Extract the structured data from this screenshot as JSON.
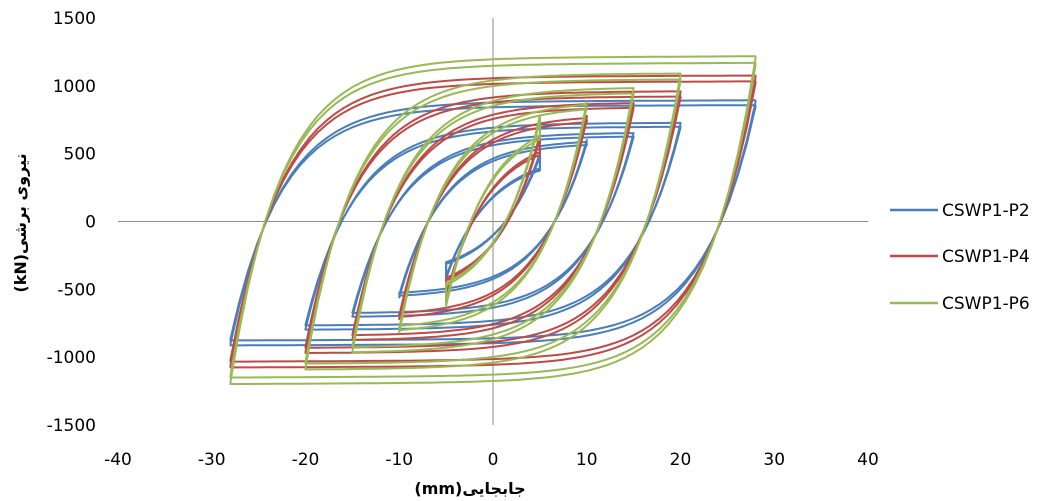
{
  "chart_data": {
    "type": "line",
    "xlabel": "جابجایی(mm)",
    "ylabel": "نیروی برشی(kN)",
    "xlim": [
      -40,
      40
    ],
    "ylim": [
      -1500,
      1500
    ],
    "x_ticks": [
      -40,
      -30,
      -20,
      -10,
      0,
      10,
      20,
      30,
      40
    ],
    "y_ticks": [
      1500,
      1000,
      500,
      0,
      -500,
      -1000,
      -1500
    ],
    "grid": false,
    "legend_position": "right",
    "series": [
      {
        "name": "CSWP1-P2",
        "color": "#4a7ebb",
        "cycles": [
          {
            "dmax": 5,
            "fmax": 500,
            "fmin": -420,
            "k": 120,
            "sh": 0.35
          },
          {
            "dmax": 10,
            "fmax": 600,
            "fmin": -560,
            "k": 110,
            "sh": 0.35
          },
          {
            "dmax": 15,
            "fmax": 650,
            "fmin": -700,
            "k": 100,
            "sh": 0.38
          },
          {
            "dmax": 20,
            "fmax": 720,
            "fmin": -790,
            "k": 95,
            "sh": 0.4
          },
          {
            "dmax": 28,
            "fmax": 880,
            "fmin": -900,
            "k": 100,
            "sh": 0.42
          }
        ]
      },
      {
        "name": "CSWP1-P4",
        "color": "#be4b48",
        "cycles": [
          {
            "dmax": 5,
            "fmax": 640,
            "fmin": -560,
            "k": 140,
            "sh": 0.33
          },
          {
            "dmax": 10,
            "fmax": 780,
            "fmin": -720,
            "k": 120,
            "sh": 0.35
          },
          {
            "dmax": 15,
            "fmax": 870,
            "fmin": -870,
            "k": 110,
            "sh": 0.38
          },
          {
            "dmax": 20,
            "fmax": 950,
            "fmin": -960,
            "k": 105,
            "sh": 0.4
          },
          {
            "dmax": 28,
            "fmax": 1060,
            "fmin": -1060,
            "k": 110,
            "sh": 0.42
          }
        ]
      },
      {
        "name": "CSWP1-P6",
        "color": "#98b954",
        "cycles": [
          {
            "dmax": 5,
            "fmax": 780,
            "fmin": -620,
            "k": 150,
            "sh": 0.33
          },
          {
            "dmax": 10,
            "fmax": 880,
            "fmin": -820,
            "k": 125,
            "sh": 0.35
          },
          {
            "dmax": 15,
            "fmax": 980,
            "fmin": -960,
            "k": 115,
            "sh": 0.38
          },
          {
            "dmax": 20,
            "fmax": 1080,
            "fmin": -1080,
            "k": 110,
            "sh": 0.4
          },
          {
            "dmax": 28,
            "fmax": 1200,
            "fmin": -1180,
            "k": 115,
            "sh": 0.42
          }
        ]
      }
    ]
  }
}
